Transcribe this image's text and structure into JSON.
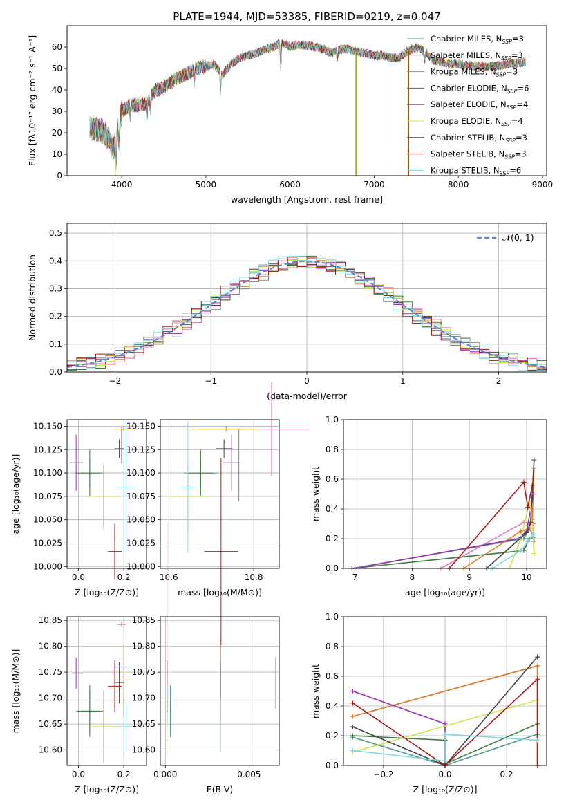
{
  "title": "PLATE=1944, MJD=53385, FIBERID=0219, z=0.047",
  "series": [
    {
      "name": "Chabrier MILES, N",
      "sub": "SSP",
      "tail": "=3",
      "color": "#4e9a8e",
      "Z": 0.05,
      "age": 10.1,
      "mass": 10.675,
      "ebv": 0.0003
    },
    {
      "name": "Salpeter MILES, N",
      "sub": "SSP",
      "tail": "=3",
      "color": "#e879c0",
      "Z": 0.19,
      "age": 10.147,
      "mass": 10.842,
      "ebv": 0.0001
    },
    {
      "name": "Kroupa MILES, N",
      "sub": "SSP",
      "tail": "=3",
      "color": "#e07b1a",
      "Z": 0.2,
      "age": 10.147,
      "mass": 10.735,
      "ebv": 0.0033
    },
    {
      "name": "Chabrier ELODIE, N",
      "sub": "SSP",
      "tail": "=6",
      "color": "#3d7a3d",
      "Z": 0.05,
      "age": 10.1,
      "mass": 10.675,
      "ebv": 0.0001
    },
    {
      "name": "Salpeter ELODIE, N",
      "sub": "SSP",
      "tail": "=4",
      "color": "#9a2fb5",
      "Z": -0.01,
      "age": 10.111,
      "mass": 10.748,
      "ebv": 0.0001
    },
    {
      "name": "Kroupa ELODIE, N",
      "sub": "SSP",
      "tail": "=4",
      "color": "#c9e84a",
      "Z": 0.11,
      "age": 10.075,
      "mass": 10.645,
      "ebv": 0.0001
    },
    {
      "name": "Chabrier STELIB, N",
      "sub": "SSP",
      "tail": "=3",
      "color": "#444444",
      "Z": 0.18,
      "age": 10.126,
      "mass": 10.73,
      "ebv": 0.0066
    },
    {
      "name": "Salpeter STELIB, N",
      "sub": "SSP",
      "tail": "=3",
      "color": "#b01818",
      "Z": 0.16,
      "age": 10.016,
      "mass": 10.723,
      "ebv": 0.0001
    },
    {
      "name": "Kroupa STELIB, N",
      "sub": "SSP",
      "tail": "=6",
      "color": "#7dd8e0",
      "Z": 0.21,
      "age": 10.085,
      "mass": 10.645,
      "ebv": 0.0033
    }
  ],
  "extra_color": "#6a7fd6",
  "chart_data": [
    {
      "type": "line",
      "xlabel": "wavelength [Angstrom, rest frame]",
      "ylabel": "Flux [fλ10⁻¹⁷ erg cm⁻² s⁻¹ A⁻¹]",
      "xlim": [
        3350,
        9050
      ],
      "ylim": [
        0,
        70
      ],
      "xticks": [
        "4000",
        "5000",
        "6000",
        "7000",
        "8000",
        "9000"
      ],
      "yticks": [
        "0",
        "10",
        "20",
        "30",
        "40",
        "50",
        "60"
      ],
      "spectrum_envelope": [
        [
          3620,
          22
        ],
        [
          3700,
          22
        ],
        [
          3800,
          20
        ],
        [
          3900,
          12
        ],
        [
          4000,
          30
        ],
        [
          4100,
          33
        ],
        [
          4200,
          33
        ],
        [
          4300,
          34
        ],
        [
          4400,
          40
        ],
        [
          4500,
          41
        ],
        [
          4600,
          44
        ],
        [
          4700,
          46
        ],
        [
          4800,
          48
        ],
        [
          4900,
          50
        ],
        [
          5000,
          51
        ],
        [
          5100,
          52
        ],
        [
          5200,
          47
        ],
        [
          5300,
          52
        ],
        [
          5400,
          55
        ],
        [
          5500,
          56
        ],
        [
          5600,
          57
        ],
        [
          5700,
          59
        ],
        [
          5800,
          60
        ],
        [
          5900,
          62
        ],
        [
          6000,
          60
        ],
        [
          6100,
          61
        ],
        [
          6200,
          61
        ],
        [
          6300,
          60
        ],
        [
          6400,
          59
        ],
        [
          6500,
          57
        ],
        [
          6600,
          59
        ],
        [
          6700,
          59
        ],
        [
          6800,
          58
        ],
        [
          6900,
          57
        ],
        [
          7000,
          56
        ],
        [
          7100,
          56
        ],
        [
          7200,
          55
        ],
        [
          7300,
          55
        ],
        [
          7400,
          58
        ],
        [
          7500,
          60
        ],
        [
          7600,
          58
        ],
        [
          7700,
          54
        ],
        [
          7800,
          53
        ],
        [
          7900,
          52
        ],
        [
          8000,
          52
        ],
        [
          8200,
          51
        ],
        [
          8400,
          51
        ],
        [
          8600,
          52
        ],
        [
          8800,
          53
        ]
      ]
    },
    {
      "type": "line",
      "xlabel": "(data-model)/error",
      "ylabel": "Normed distribution",
      "xlim": [
        -2.5,
        2.5
      ],
      "ylim": [
        0,
        0.535
      ],
      "xticks": [
        "−2",
        "−1",
        "0",
        "1",
        "2"
      ],
      "yticks": [
        "0.0",
        "0.1",
        "0.2",
        "0.3",
        "0.4",
        "0.5"
      ],
      "legend": "𝒩(0, 1)"
    },
    {
      "type": "scatter",
      "xlabel": "Z [log₁₀(Z/Z⊙)]",
      "ylabel": "age  [log₁₀(age/yr)]",
      "xlim": [
        -0.05,
        0.3
      ],
      "ylim": [
        9.998,
        10.157
      ],
      "xticks": [
        "0.0",
        "0.2"
      ],
      "yticks": [
        "10.000",
        "10.025",
        "10.050",
        "10.075",
        "10.100",
        "10.125",
        "10.150"
      ]
    },
    {
      "type": "scatter",
      "xlabel": "mass [log₁₀(M/M⊙)]",
      "ylabel": "",
      "xlim": [
        10.58,
        10.86
      ],
      "ylim": [
        9.998,
        10.157
      ],
      "xticks": [
        "10.6",
        "10.8"
      ],
      "yticks": [
        "10.000",
        "10.025",
        "10.050",
        "10.075",
        "10.100",
        "10.125",
        "10.150"
      ]
    },
    {
      "type": "line",
      "xlabel": "age  [log₁₀(age/yr)]",
      "ylabel": "mass weight",
      "xlim": [
        6.8,
        10.35
      ],
      "ylim": [
        0,
        1
      ],
      "xticks": [
        "7",
        "8",
        "9",
        "10"
      ],
      "yticks": [
        "0.0",
        "0.2",
        "0.4",
        "0.6",
        "0.8",
        "1.0"
      ]
    },
    {
      "type": "scatter",
      "xlabel": "Z [log₁₀(Z/Z⊙)]",
      "ylabel": "mass [log₁₀(M/M⊙)]",
      "xlim": [
        -0.05,
        0.3
      ],
      "ylim": [
        10.57,
        10.857
      ],
      "xticks": [
        "0.0",
        "0.2"
      ],
      "yticks": [
        "10.60",
        "10.65",
        "10.70",
        "10.75",
        "10.80",
        "10.85"
      ]
    },
    {
      "type": "scatter",
      "xlabel": "E(B-V)",
      "ylabel": "",
      "xlim": [
        -0.0003,
        0.0068
      ],
      "ylim": [
        10.57,
        10.857
      ],
      "xticks": [
        "0.000",
        "0.005"
      ],
      "yticks": [
        "10.60",
        "10.65",
        "10.70",
        "10.75",
        "10.80",
        "10.85"
      ]
    },
    {
      "type": "line",
      "xlabel": "Z [log₁₀(Z/Z⊙)]",
      "ylabel": "mass weight",
      "xlim": [
        -0.33,
        0.33
      ],
      "ylim": [
        0,
        1
      ],
      "xticks": [
        "−0.2",
        "0.0",
        "0.2"
      ],
      "yticks": [
        "0.0",
        "0.2",
        "0.4",
        "0.6",
        "0.8",
        "1.0"
      ]
    }
  ]
}
